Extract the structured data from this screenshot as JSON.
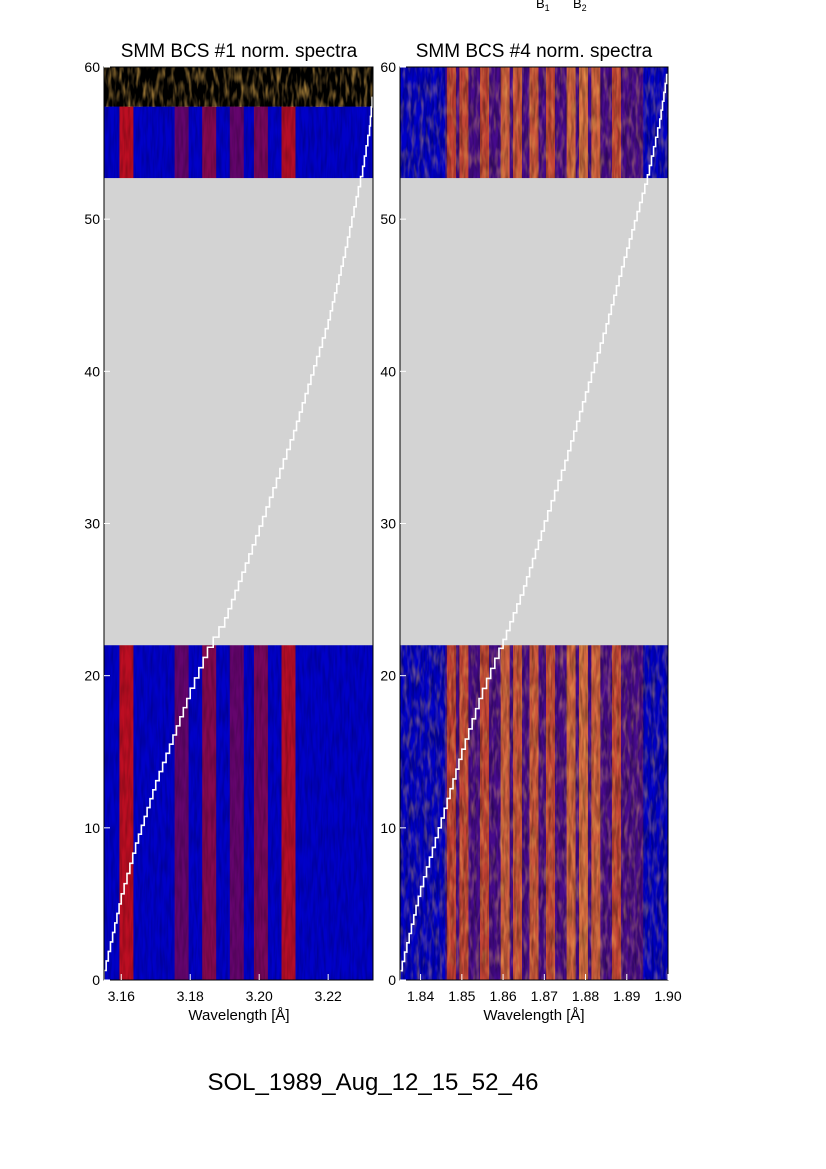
{
  "top_marks": [
    {
      "base": "B",
      "sub": "1"
    },
    {
      "base": "B",
      "sub": "2"
    }
  ],
  "caption": "SOL_1989_Aug_12_15_52_46",
  "colors": {
    "spectrum_low": "#0000c8",
    "spectrum_mid": "#a00000",
    "spectrum_high": "#ffb040",
    "gap_fill": "#d3d3d3",
    "trace": "#ffffff"
  },
  "chart_data": [
    {
      "type": "heatmap",
      "title": "SMM BCS #1 norm. spectra",
      "xlabel": "Wavelength [Å]",
      "ylabel": "",
      "xlim": [
        3.155,
        3.233
      ],
      "ylim": [
        0,
        60
      ],
      "x_ticks": [
        3.16,
        3.18,
        3.2,
        3.22
      ],
      "x_tick_labels": [
        "3.16",
        "3.18",
        "3.20",
        "3.22"
      ],
      "y_ticks": [
        0,
        10,
        20,
        30,
        40,
        50,
        60
      ],
      "y_tick_labels": [
        "0",
        "10",
        "20",
        "30",
        "40",
        "50",
        "60"
      ],
      "data_gap_y": [
        22,
        52.7
      ],
      "noise_band_y": [
        57.4,
        60
      ],
      "bright_lines_x": [
        3.1615,
        3.1775,
        3.1855,
        3.1935,
        3.2005,
        3.2085
      ],
      "bright_line_strengths": [
        1.0,
        0.35,
        0.6,
        0.35,
        0.5,
        0.95
      ],
      "trace_x": [
        3.155,
        3.16,
        3.165,
        3.17,
        3.175,
        3.18,
        3.185,
        3.19,
        3.2,
        3.21,
        3.22,
        3.225,
        3.23,
        3.232,
        3.233
      ],
      "trace_y": [
        0,
        5,
        9,
        12.5,
        15.5,
        18.5,
        21.2,
        23.2,
        29.2,
        35.5,
        42.8,
        47.5,
        52.8,
        55.5,
        58
      ]
    },
    {
      "type": "heatmap",
      "title": "SMM BCS #4 norm. spectra",
      "xlabel": "Wavelength [Å]",
      "ylabel": "",
      "xlim": [
        1.835,
        1.9
      ],
      "ylim": [
        0,
        60
      ],
      "x_ticks": [
        1.84,
        1.85,
        1.86,
        1.87,
        1.88,
        1.89,
        1.9
      ],
      "x_tick_labels": [
        "1.84",
        "1.85",
        "1.86",
        "1.87",
        "1.88",
        "1.89",
        "1.90"
      ],
      "y_ticks": [
        0,
        10,
        20,
        30,
        40,
        50,
        60
      ],
      "y_tick_labels": [
        "0",
        "10",
        "20",
        "30",
        "40",
        "50",
        "60"
      ],
      "data_gap_y": [
        22,
        52.7
      ],
      "bright_lines_x": [
        1.8475,
        1.8505,
        1.8555,
        1.8605,
        1.8635,
        1.8675,
        1.8715,
        1.8765,
        1.8795,
        1.8825,
        1.8875
      ],
      "bright_line_strengths": [
        0.5,
        0.6,
        0.55,
        0.85,
        0.7,
        0.75,
        0.6,
        0.9,
        1.0,
        0.85,
        0.6
      ],
      "trace_x": [
        1.835,
        1.84,
        1.845,
        1.85,
        1.855,
        1.86,
        1.865,
        1.87,
        1.875,
        1.88,
        1.885,
        1.89,
        1.895,
        1.898,
        1.9
      ],
      "trace_y": [
        0,
        5.5,
        10,
        14.5,
        18.5,
        21.8,
        25.3,
        29.5,
        33.5,
        38,
        42.5,
        47.5,
        52.3,
        56,
        59.5
      ]
    }
  ]
}
